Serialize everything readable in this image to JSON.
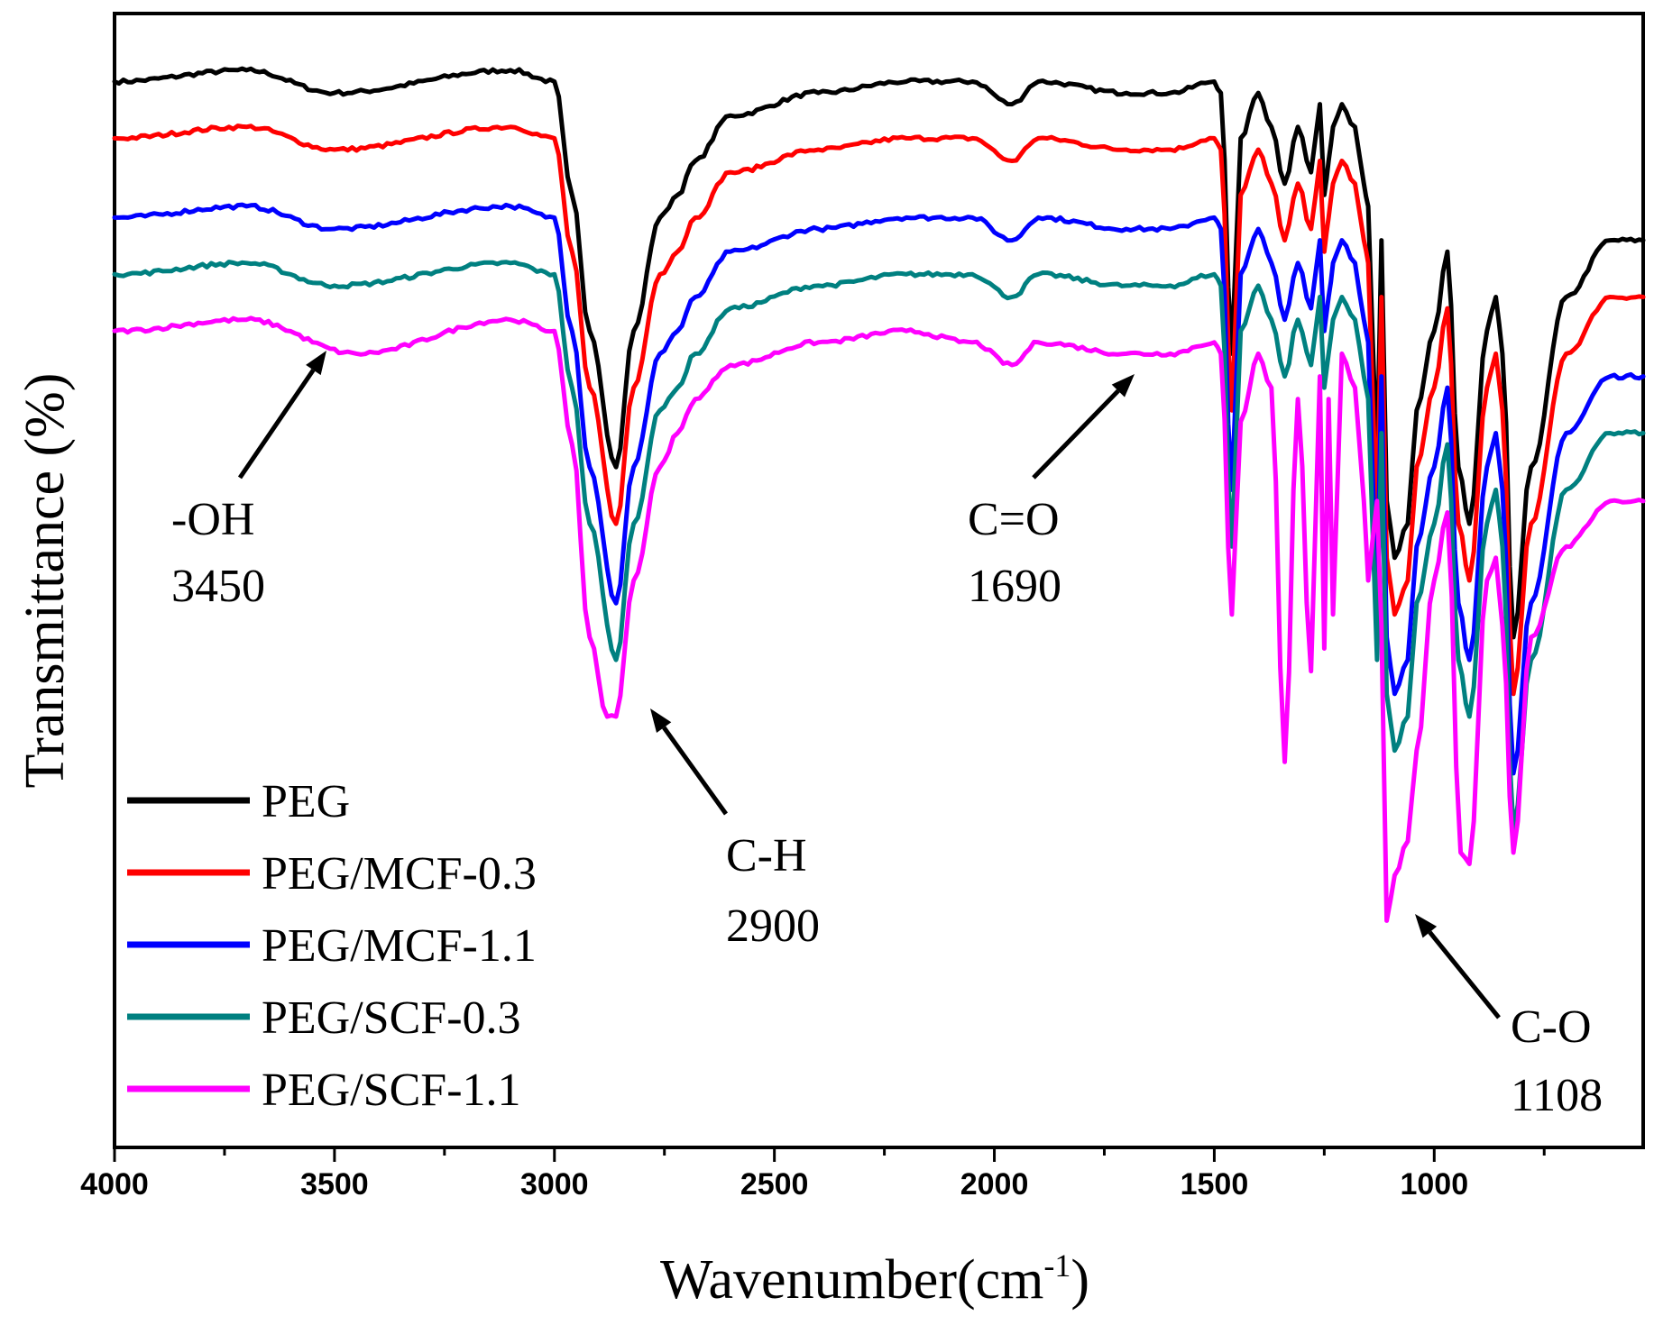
{
  "chart_data": {
    "type": "line",
    "title": "",
    "xlabel": "Wavenumber(cm",
    "xlabel_sup": "-1",
    "xlabel_close": ")",
    "ylabel": "Transmittance (%)",
    "xlim": [
      4000,
      525
    ],
    "ylim": [
      0,
      100
    ],
    "x_reversed": true,
    "grid": false,
    "y_ticks_labeled": false,
    "x_ticks": [
      4000,
      3500,
      3000,
      2500,
      2000,
      1500,
      1000
    ],
    "x_tick_labels": [
      "4000",
      "3500",
      "3000",
      "2500",
      "2000",
      "1500",
      "1000"
    ],
    "legend_position": "bottom-left",
    "series": [
      {
        "name": "PEG",
        "color": "#000000",
        "offset": 0,
        "x": [
          4000,
          3700,
          3500,
          3100,
          3000,
          2960,
          2920,
          2860,
          2820,
          2760,
          2720,
          2680,
          2600,
          2400,
          2200,
          2050,
          1960,
          1900,
          1700,
          1600,
          1500,
          1485,
          1460,
          1440,
          1400,
          1370,
          1340,
          1310,
          1280,
          1260,
          1250,
          1240,
          1230,
          1210,
          1180,
          1160,
          1150,
          1130,
          1120,
          1108,
          1090,
          1060,
          1040,
          1000,
          970,
          945,
          920,
          880,
          860,
          845,
          820,
          780,
          700,
          600,
          525
        ],
        "y": [
          94,
          95,
          93,
          95,
          94,
          84,
          72,
          60,
          72,
          82,
          84,
          87,
          91,
          93,
          94,
          94,
          92,
          94,
          93,
          93,
          94,
          93,
          70,
          89,
          93,
          90,
          85,
          90,
          86,
          92,
          84,
          87,
          90,
          92,
          90,
          85,
          83,
          60,
          80,
          57,
          52,
          55,
          65,
          72,
          79,
          60,
          55,
          72,
          75,
          70,
          45,
          60,
          75,
          80,
          80
        ]
      },
      {
        "name": "PEG/MCF-0.3",
        "color": "#ff0000",
        "offset": -5,
        "x": [
          4000,
          3700,
          3500,
          3100,
          3000,
          2960,
          2920,
          2860,
          2820,
          2760,
          2720,
          2680,
          2600,
          2400,
          2200,
          2050,
          1960,
          1900,
          1700,
          1600,
          1500,
          1485,
          1460,
          1440,
          1400,
          1370,
          1340,
          1310,
          1280,
          1260,
          1250,
          1240,
          1230,
          1210,
          1180,
          1160,
          1150,
          1130,
          1120,
          1108,
          1090,
          1060,
          1040,
          1000,
          970,
          945,
          920,
          880,
          860,
          845,
          820,
          780,
          700,
          600,
          525
        ],
        "y": [
          94,
          95,
          93,
          95,
          94,
          84,
          72,
          60,
          72,
          82,
          84,
          87,
          91,
          93,
          94,
          94,
          92,
          94,
          93,
          93,
          94,
          93,
          70,
          89,
          93,
          90,
          85,
          90,
          86,
          92,
          84,
          87,
          90,
          92,
          90,
          85,
          83,
          60,
          80,
          57,
          52,
          55,
          65,
          72,
          79,
          60,
          55,
          72,
          75,
          70,
          45,
          60,
          75,
          80,
          80
        ]
      },
      {
        "name": "PEG/MCF-1.1",
        "color": "#0000ff",
        "offset": -12,
        "x": [
          4000,
          3700,
          3500,
          3100,
          3000,
          2960,
          2920,
          2860,
          2820,
          2760,
          2720,
          2680,
          2600,
          2400,
          2200,
          2050,
          1960,
          1900,
          1700,
          1600,
          1500,
          1485,
          1460,
          1440,
          1400,
          1370,
          1340,
          1310,
          1280,
          1260,
          1250,
          1240,
          1230,
          1210,
          1180,
          1160,
          1150,
          1130,
          1120,
          1108,
          1090,
          1060,
          1040,
          1000,
          970,
          945,
          920,
          880,
          860,
          845,
          820,
          780,
          700,
          600,
          525
        ],
        "y": [
          94,
          95,
          93,
          95,
          94,
          84,
          72,
          60,
          72,
          82,
          84,
          87,
          91,
          93,
          94,
          94,
          92,
          94,
          93,
          93,
          94,
          93,
          70,
          89,
          93,
          90,
          85,
          90,
          86,
          92,
          84,
          87,
          90,
          92,
          90,
          85,
          83,
          60,
          80,
          57,
          52,
          55,
          65,
          72,
          79,
          60,
          55,
          72,
          75,
          70,
          45,
          60,
          75,
          80,
          80
        ]
      },
      {
        "name": "PEG/SCF-0.3",
        "color": "#008080",
        "offset": -17,
        "x": [
          4000,
          3700,
          3500,
          3100,
          3000,
          2960,
          2920,
          2860,
          2820,
          2760,
          2720,
          2680,
          2600,
          2400,
          2200,
          2050,
          1960,
          1900,
          1700,
          1600,
          1500,
          1485,
          1460,
          1440,
          1400,
          1370,
          1340,
          1310,
          1280,
          1260,
          1250,
          1240,
          1230,
          1210,
          1180,
          1160,
          1150,
          1130,
          1120,
          1108,
          1090,
          1060,
          1040,
          1000,
          970,
          945,
          920,
          880,
          860,
          845,
          820,
          780,
          700,
          600,
          525
        ],
        "y": [
          94,
          95,
          93,
          95,
          94,
          84,
          72,
          60,
          72,
          82,
          84,
          87,
          91,
          93,
          94,
          94,
          92,
          94,
          93,
          93,
          94,
          93,
          70,
          89,
          93,
          90,
          85,
          90,
          86,
          92,
          84,
          87,
          90,
          92,
          90,
          85,
          83,
          60,
          80,
          57,
          52,
          55,
          65,
          72,
          79,
          60,
          55,
          72,
          75,
          70,
          45,
          60,
          75,
          80,
          80
        ]
      },
      {
        "name": "PEG/SCF-1.1",
        "color": "#ff00ff",
        "offset": 0,
        "x": [
          4000,
          3700,
          3450,
          3100,
          3000,
          2960,
          2920,
          2880,
          2860,
          2820,
          2760,
          2720,
          2680,
          2600,
          2400,
          2200,
          2050,
          1960,
          1900,
          1700,
          1600,
          1500,
          1485,
          1460,
          1440,
          1400,
          1370,
          1340,
          1310,
          1280,
          1260,
          1250,
          1240,
          1230,
          1210,
          1180,
          1160,
          1150,
          1130,
          1120,
          1108,
          1090,
          1060,
          1040,
          1000,
          970,
          940,
          920,
          880,
          860,
          845,
          820,
          780,
          700,
          600,
          525
        ],
        "y": [
          72,
          73,
          70,
          73,
          72,
          62,
          45,
          38,
          38,
          50,
          60,
          63,
          66,
          69,
          71,
          72,
          71,
          69,
          71,
          70,
          70,
          71,
          70,
          47,
          64,
          70,
          67,
          34,
          66,
          42,
          68,
          44,
          66,
          47,
          70,
          67,
          57,
          50,
          57,
          46,
          20,
          24,
          27,
          35,
          50,
          56,
          26,
          25,
          50,
          52,
          46,
          26,
          45,
          53,
          57,
          57
        ]
      }
    ],
    "annotations": [
      {
        "id": "oh",
        "label": "-OH",
        "value": "3450",
        "x": 3450
      },
      {
        "id": "ch",
        "label": "C-H",
        "value": "2900",
        "x": 2900
      },
      {
        "id": "co2",
        "label": "C=O",
        "value": "1690",
        "x": 1690
      },
      {
        "id": "co",
        "label": "C-O",
        "value": "1108",
        "x": 1108
      }
    ]
  }
}
